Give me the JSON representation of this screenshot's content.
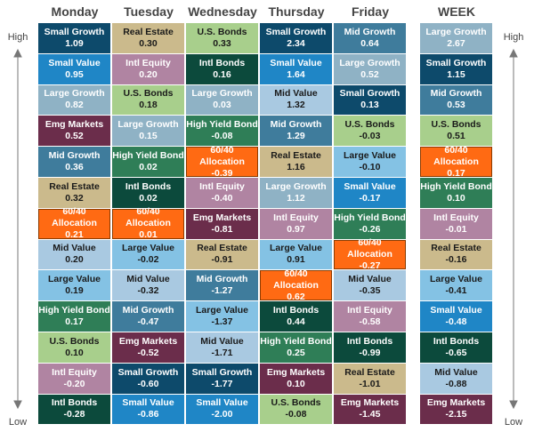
{
  "side_labels": {
    "top": "High",
    "bottom": "Low"
  },
  "asset_colors": {
    "Small Growth": {
      "fill": "#0d4a6b",
      "text": "#ffffff"
    },
    "Small Value": {
      "fill": "#1f86c6",
      "text": "#ffffff"
    },
    "Large Growth": {
      "fill": "#8fb2c5",
      "text": "#ffffff"
    },
    "Emg Markets": {
      "fill": "#6b2d4b",
      "text": "#ffffff"
    },
    "Mid Growth": {
      "fill": "#3f7c9c",
      "text": "#ffffff"
    },
    "Real Estate": {
      "fill": "#cbba8c",
      "text": "#1a1a1a"
    },
    "60/40 Allocation": {
      "fill": "#ff6a13",
      "text": "#ffffff"
    },
    "Mid Value": {
      "fill": "#a9c9e1",
      "text": "#1a1a1a"
    },
    "Large Value": {
      "fill": "#84c2e4",
      "text": "#1a1a1a"
    },
    "High Yield Bond": {
      "fill": "#2f7e57",
      "text": "#ffffff"
    },
    "U.S. Bonds": {
      "fill": "#a8cf8c",
      "text": "#1a1a1a"
    },
    "Intl Equity": {
      "fill": "#b084a2",
      "text": "#ffffff"
    },
    "Intl Bonds": {
      "fill": "#0c4a3c",
      "text": "#ffffff"
    }
  },
  "columns": [
    {
      "header": "Monday",
      "cells": [
        {
          "name": "Small Growth",
          "value": "1.09"
        },
        {
          "name": "Small Value",
          "value": "0.95"
        },
        {
          "name": "Large Growth",
          "value": "0.82"
        },
        {
          "name": "Emg Markets",
          "value": "0.52"
        },
        {
          "name": "Mid Growth",
          "value": "0.36"
        },
        {
          "name": "Real Estate",
          "value": "0.32"
        },
        {
          "name": "60/40 Allocation",
          "value": "0.21"
        },
        {
          "name": "Mid Value",
          "value": "0.20"
        },
        {
          "name": "Large Value",
          "value": "0.19"
        },
        {
          "name": "High Yield Bond",
          "value": "0.17"
        },
        {
          "name": "U.S. Bonds",
          "value": "0.10"
        },
        {
          "name": "Intl Equity",
          "value": "-0.20"
        },
        {
          "name": "Intl Bonds",
          "value": "-0.28"
        }
      ]
    },
    {
      "header": "Tuesday",
      "cells": [
        {
          "name": "Real Estate",
          "value": "0.30"
        },
        {
          "name": "Intl Equity",
          "value": "0.20"
        },
        {
          "name": "U.S. Bonds",
          "value": "0.18"
        },
        {
          "name": "Large Growth",
          "value": "0.15"
        },
        {
          "name": "High Yield Bond",
          "value": "0.02"
        },
        {
          "name": "Intl Bonds",
          "value": "0.02"
        },
        {
          "name": "60/40 Allocation",
          "value": "0.01"
        },
        {
          "name": "Large Value",
          "value": "-0.02"
        },
        {
          "name": "Mid Value",
          "value": "-0.32"
        },
        {
          "name": "Mid Growth",
          "value": "-0.47"
        },
        {
          "name": "Emg Markets",
          "value": "-0.52"
        },
        {
          "name": "Small Growth",
          "value": "-0.60"
        },
        {
          "name": "Small Value",
          "value": "-0.86"
        }
      ]
    },
    {
      "header": "Wednesday",
      "cells": [
        {
          "name": "U.S. Bonds",
          "value": "0.33"
        },
        {
          "name": "Intl Bonds",
          "value": "0.16"
        },
        {
          "name": "Large Growth",
          "value": "0.03"
        },
        {
          "name": "High Yield Bond",
          "value": "-0.08"
        },
        {
          "name": "60/40 Allocation",
          "value": "-0.39"
        },
        {
          "name": "Intl Equity",
          "value": "-0.40"
        },
        {
          "name": "Emg Markets",
          "value": "-0.81"
        },
        {
          "name": "Real Estate",
          "value": "-0.91"
        },
        {
          "name": "Mid Growth",
          "value": "-1.27"
        },
        {
          "name": "Large Value",
          "value": "-1.37"
        },
        {
          "name": "Mid Value",
          "value": "-1.71"
        },
        {
          "name": "Small Growth",
          "value": "-1.77"
        },
        {
          "name": "Small Value",
          "value": "-2.00"
        }
      ]
    },
    {
      "header": "Thursday",
      "cells": [
        {
          "name": "Small Growth",
          "value": "2.34"
        },
        {
          "name": "Small Value",
          "value": "1.64"
        },
        {
          "name": "Mid Value",
          "value": "1.32"
        },
        {
          "name": "Mid Growth",
          "value": "1.29"
        },
        {
          "name": "Real Estate",
          "value": "1.16"
        },
        {
          "name": "Large Growth",
          "value": "1.12"
        },
        {
          "name": "Intl Equity",
          "value": "0.97"
        },
        {
          "name": "Large Value",
          "value": "0.91"
        },
        {
          "name": "60/40 Allocation",
          "value": "0.62"
        },
        {
          "name": "Intl Bonds",
          "value": "0.44"
        },
        {
          "name": "High Yield Bond",
          "value": "0.25"
        },
        {
          "name": "Emg Markets",
          "value": "0.10"
        },
        {
          "name": "U.S. Bonds",
          "value": "-0.08"
        }
      ]
    },
    {
      "header": "Friday",
      "cells": [
        {
          "name": "Mid Growth",
          "value": "0.64"
        },
        {
          "name": "Large Growth",
          "value": "0.52"
        },
        {
          "name": "Small Growth",
          "value": "0.13"
        },
        {
          "name": "U.S. Bonds",
          "value": "-0.03"
        },
        {
          "name": "Large Value",
          "value": "-0.10"
        },
        {
          "name": "Small Value",
          "value": "-0.17"
        },
        {
          "name": "High Yield Bond",
          "value": "-0.26"
        },
        {
          "name": "60/40 Allocation",
          "value": "-0.27"
        },
        {
          "name": "Mid Value",
          "value": "-0.35"
        },
        {
          "name": "Intl Equity",
          "value": "-0.58"
        },
        {
          "name": "Intl Bonds",
          "value": "-0.99"
        },
        {
          "name": "Real Estate",
          "value": "-1.01"
        },
        {
          "name": "Emg Markets",
          "value": "-1.45"
        }
      ]
    },
    {
      "header": "WEEK",
      "cells": [
        {
          "name": "Large Growth",
          "value": "2.67"
        },
        {
          "name": "Small Growth",
          "value": "1.15"
        },
        {
          "name": "Mid Growth",
          "value": "0.53"
        },
        {
          "name": "U.S. Bonds",
          "value": "0.51"
        },
        {
          "name": "60/40 Allocation",
          "value": "0.17"
        },
        {
          "name": "High Yield Bond",
          "value": "0.10"
        },
        {
          "name": "Intl Equity",
          "value": "-0.01"
        },
        {
          "name": "Real Estate",
          "value": "-0.16"
        },
        {
          "name": "Large Value",
          "value": "-0.41"
        },
        {
          "name": "Small Value",
          "value": "-0.48"
        },
        {
          "name": "Intl Bonds",
          "value": "-0.65"
        },
        {
          "name": "Mid Value",
          "value": "-0.88"
        },
        {
          "name": "Emg Markets",
          "value": "-2.15"
        }
      ]
    }
  ]
}
